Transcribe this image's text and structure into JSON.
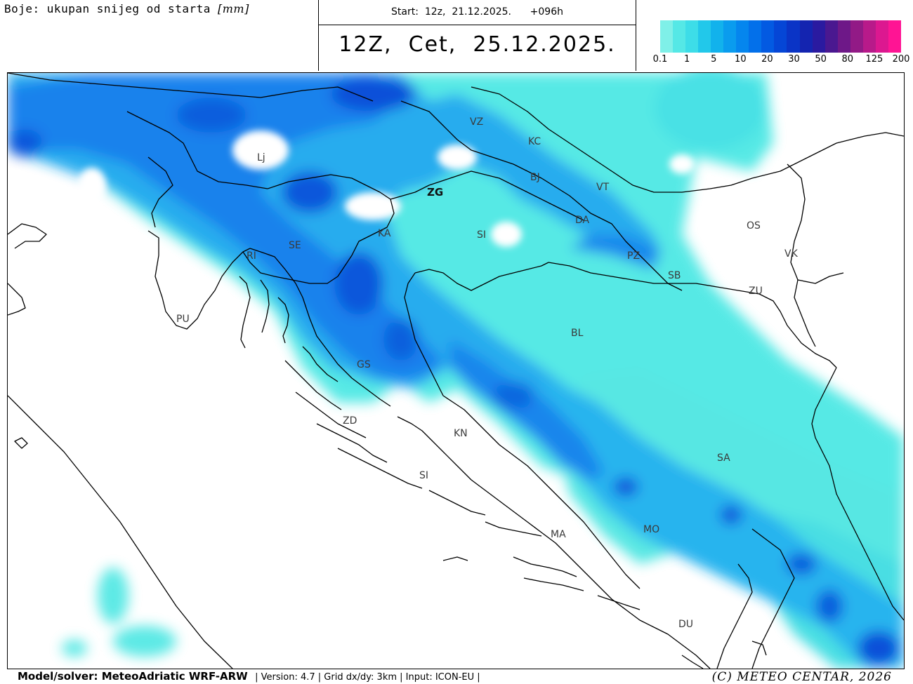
{
  "caption": {
    "colors_prefix": "Boje: ukupan snijeg od starta ",
    "unit": "[mm]"
  },
  "header": {
    "start": "Start:  12z,  21.12.2025.      +096h",
    "valid": "12Z,  Cet,  25.12.2025."
  },
  "legend": {
    "colors": [
      "#7ff0e8",
      "#55e8e6",
      "#3ddde8",
      "#22c8ea",
      "#12b2ec",
      "#0a9cee",
      "#0586ee",
      "#0370ea",
      "#035ae2",
      "#0546d6",
      "#0a34c6",
      "#1424b0",
      "#2a1aa0",
      "#4a1890",
      "#6e1888",
      "#921a86",
      "#b81a8a",
      "#dc1890",
      "#ff1494"
    ],
    "ticks": [
      "0.1",
      "1",
      "5",
      "10",
      "20",
      "30",
      "50",
      "80",
      "125",
      "200"
    ]
  },
  "map": {
    "cities": [
      {
        "code": "Lj",
        "capital": false
      },
      {
        "code": "VZ",
        "capital": false
      },
      {
        "code": "KC",
        "capital": false
      },
      {
        "code": "BJ",
        "capital": false
      },
      {
        "code": "VT",
        "capital": false
      },
      {
        "code": "ZG",
        "capital": true
      },
      {
        "code": "KA",
        "capital": false
      },
      {
        "code": "SI",
        "capital": false
      },
      {
        "code": "DA",
        "capital": false
      },
      {
        "code": "OS",
        "capital": false
      },
      {
        "code": "VK",
        "capital": false
      },
      {
        "code": "PZ",
        "capital": false
      },
      {
        "code": "SB",
        "capital": false
      },
      {
        "code": "ZU",
        "capital": false
      },
      {
        "code": "RI",
        "capital": false
      },
      {
        "code": "SE",
        "capital": false
      },
      {
        "code": "PU",
        "capital": false
      },
      {
        "code": "BL",
        "capital": false
      },
      {
        "code": "GS",
        "capital": false
      },
      {
        "code": "ZD",
        "capital": false
      },
      {
        "code": "KN",
        "capital": false
      },
      {
        "code": "SI",
        "capital": false
      },
      {
        "code": "SA",
        "capital": false
      },
      {
        "code": "MA",
        "capital": false
      },
      {
        "code": "MO",
        "capital": false
      },
      {
        "code": "DU",
        "capital": false
      }
    ]
  },
  "footer": {
    "model": "Model/solver: MeteoAdriatic WRF-ARW",
    "meta": "| Version: 4.7 | Grid dx/dy: 3km | Input: ICON-EU |",
    "copyright": "(C) METEO CENTAR, 2026"
  }
}
